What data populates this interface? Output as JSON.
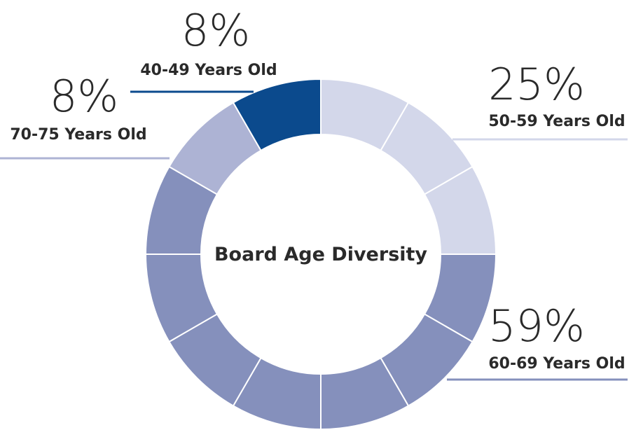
{
  "chart_data": {
    "type": "pie",
    "title": "Board Age Diversity",
    "segments_total": 12,
    "slices": [
      {
        "label": "50-59 Years Old",
        "value": 25,
        "value_label": "25%",
        "segments": 3,
        "color": "#d3d7ea"
      },
      {
        "label": "60-69 Years Old",
        "value": 59,
        "value_label": "59%",
        "segments": 7,
        "color": "#8590bc"
      },
      {
        "label": "70-75 Years Old",
        "value": 8,
        "value_label": "8%",
        "segments": 1,
        "color": "#adb3d4"
      },
      {
        "label": "40-49 Years Old",
        "value": 8,
        "value_label": "8%",
        "segments": 1,
        "color": "#0b4a8d"
      }
    ]
  }
}
